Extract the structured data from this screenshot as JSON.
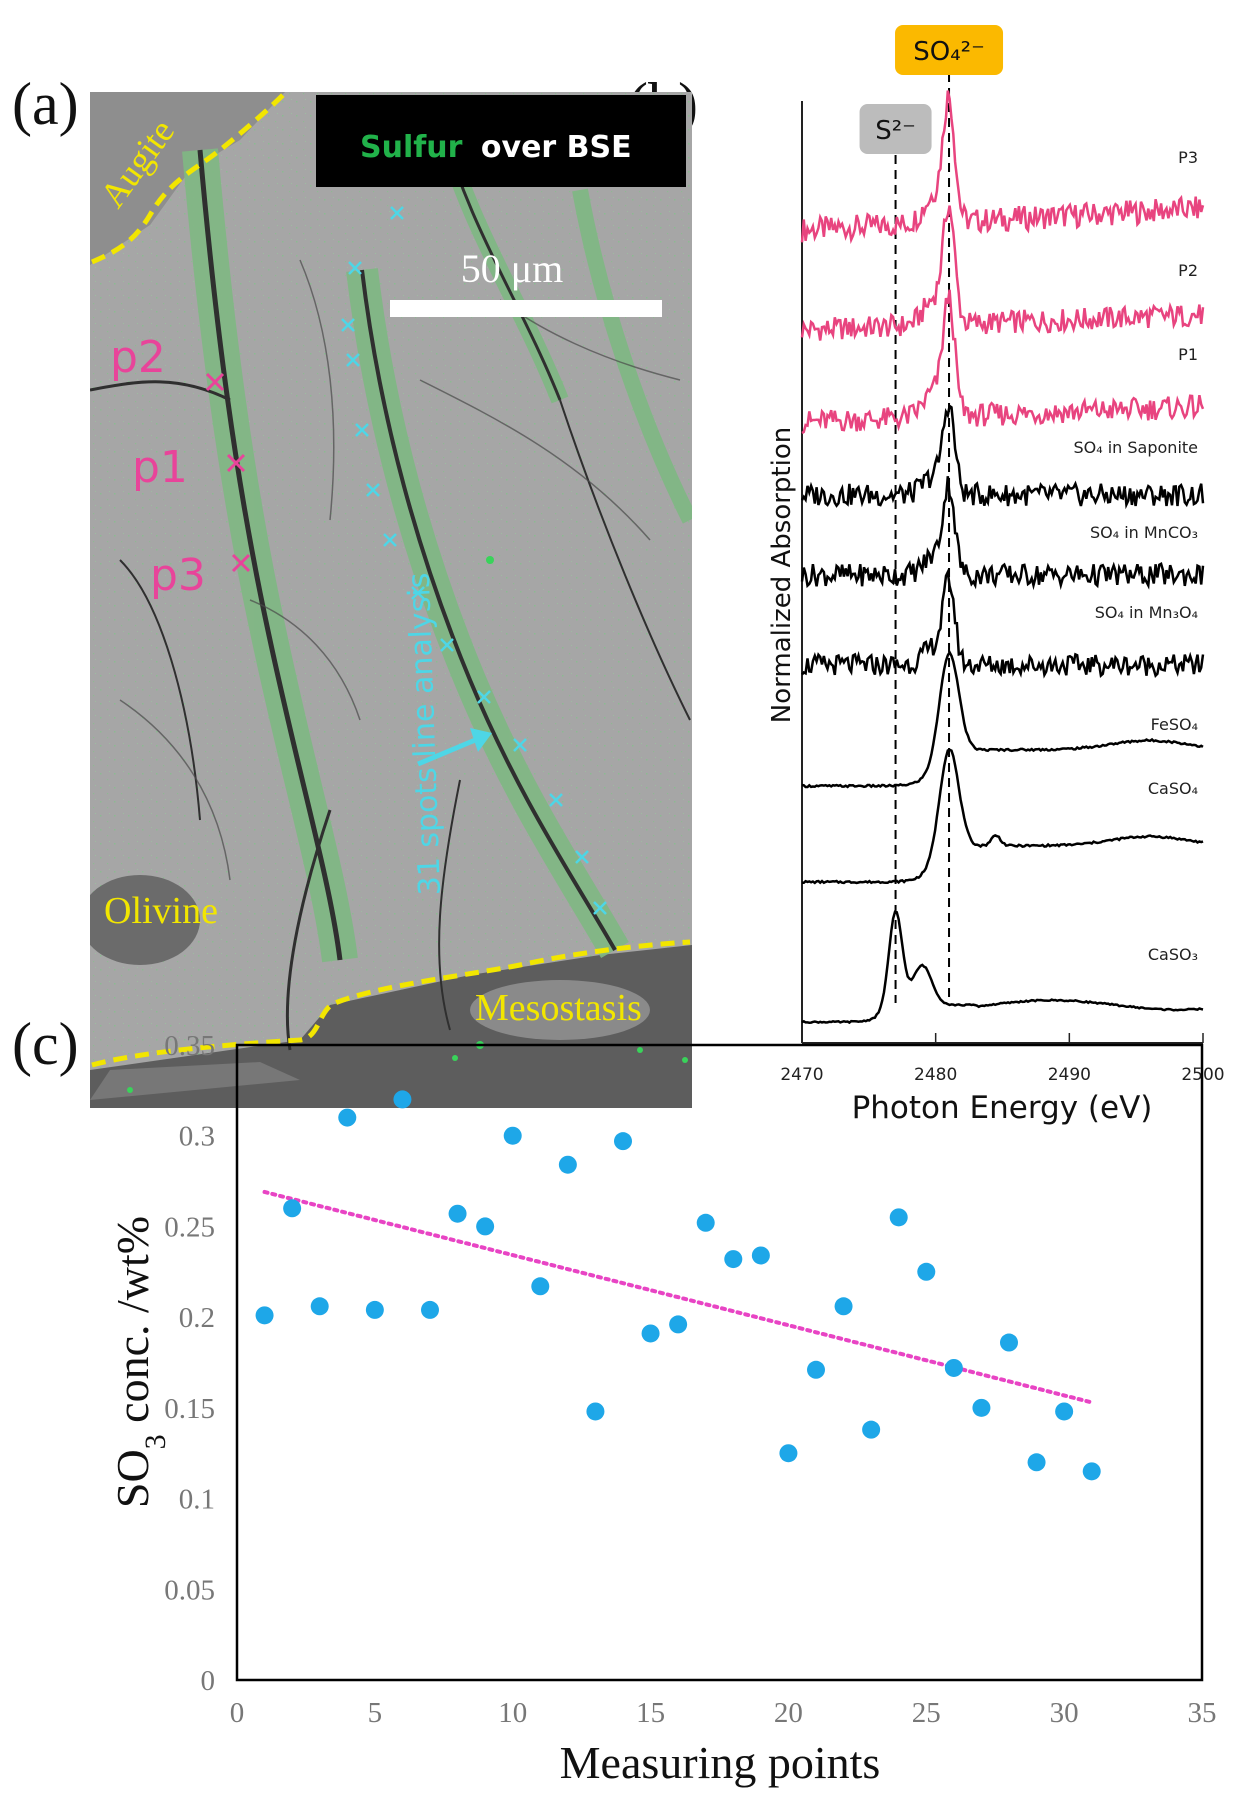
{
  "panels": {
    "a": "(a)",
    "b": "(b)",
    "c": "(c)"
  },
  "panel_a": {
    "title_word1": "Sulfur",
    "title_word2": "over BSE",
    "scale_label": "50 μm",
    "minerals": {
      "augite": "Augite",
      "olivine": "Olivine",
      "mesostasis": "Mesostasis"
    },
    "points": [
      "p2",
      "p1",
      "p3"
    ],
    "line_label": "31 spots line analysis",
    "colors": {
      "sulfur": "#21b24a",
      "points": "#e8449a",
      "line": "#4ed6e6",
      "boundary": "#f2e600"
    }
  },
  "chart_data": [
    {
      "type": "line",
      "panel": "b",
      "xlabel": "Photon Energy (eV)",
      "ylabel": "Normalized Absorption",
      "xlim": [
        2470,
        2500
      ],
      "xticks": [
        2470,
        2480,
        2490,
        2500
      ],
      "reference_lines": [
        {
          "label": "S²⁻",
          "x": 2477
        },
        {
          "label": "SO₄²⁻",
          "x": 2481
        }
      ],
      "series": [
        {
          "name": "P3",
          "color": "#e8447f",
          "peak_x": 2481
        },
        {
          "name": "P2",
          "color": "#e8447f",
          "peak_x": 2481
        },
        {
          "name": "P1",
          "color": "#e8447f",
          "peak_x": 2481
        },
        {
          "name": "SO₄ in Saponite",
          "color": "#000000",
          "peak_x": 2481
        },
        {
          "name": "SO₄ in MnCO₃",
          "color": "#000000",
          "peak_x": 2481
        },
        {
          "name": "SO₄ in Mn₃O₄",
          "color": "#000000",
          "peak_x": 2481
        },
        {
          "name": "FeSO₄",
          "color": "#000000",
          "peak_x": 2481
        },
        {
          "name": "CaSO₄",
          "color": "#000000",
          "peak_x": 2481
        },
        {
          "name": "CaSO₃",
          "color": "#000000",
          "peak_x": 2477
        }
      ]
    },
    {
      "type": "scatter",
      "panel": "c",
      "xlabel": "Measuring points",
      "ylabel": "SO3 conc. /wt%",
      "xlim": [
        0,
        35
      ],
      "ylim": [
        0,
        0.35
      ],
      "xticks": [
        0,
        5,
        10,
        15,
        20,
        25,
        30,
        35
      ],
      "yticks": [
        "0",
        "0.05",
        "0.1",
        "0.15",
        "0.2",
        "0.25",
        "0.3",
        "0.35"
      ],
      "point_color": "#1ea7e8",
      "trendline": {
        "style": "dotted",
        "color": "#e844c4",
        "x": [
          1,
          31
        ],
        "y": [
          0.269,
          0.153
        ]
      },
      "x": [
        1,
        2,
        3,
        4,
        5,
        6,
        7,
        8,
        9,
        10,
        11,
        12,
        13,
        14,
        15,
        16,
        17,
        18,
        19,
        20,
        21,
        22,
        23,
        24,
        25,
        26,
        27,
        28,
        29,
        30,
        31
      ],
      "y": [
        0.201,
        0.26,
        0.206,
        0.31,
        0.204,
        0.32,
        0.204,
        0.257,
        0.25,
        0.3,
        0.217,
        0.284,
        0.148,
        0.297,
        0.191,
        0.196,
        0.252,
        0.232,
        0.234,
        0.125,
        0.171,
        0.206,
        0.138,
        0.255,
        0.225,
        0.172,
        0.15,
        0.186,
        0.12,
        0.148,
        0.115
      ]
    }
  ]
}
